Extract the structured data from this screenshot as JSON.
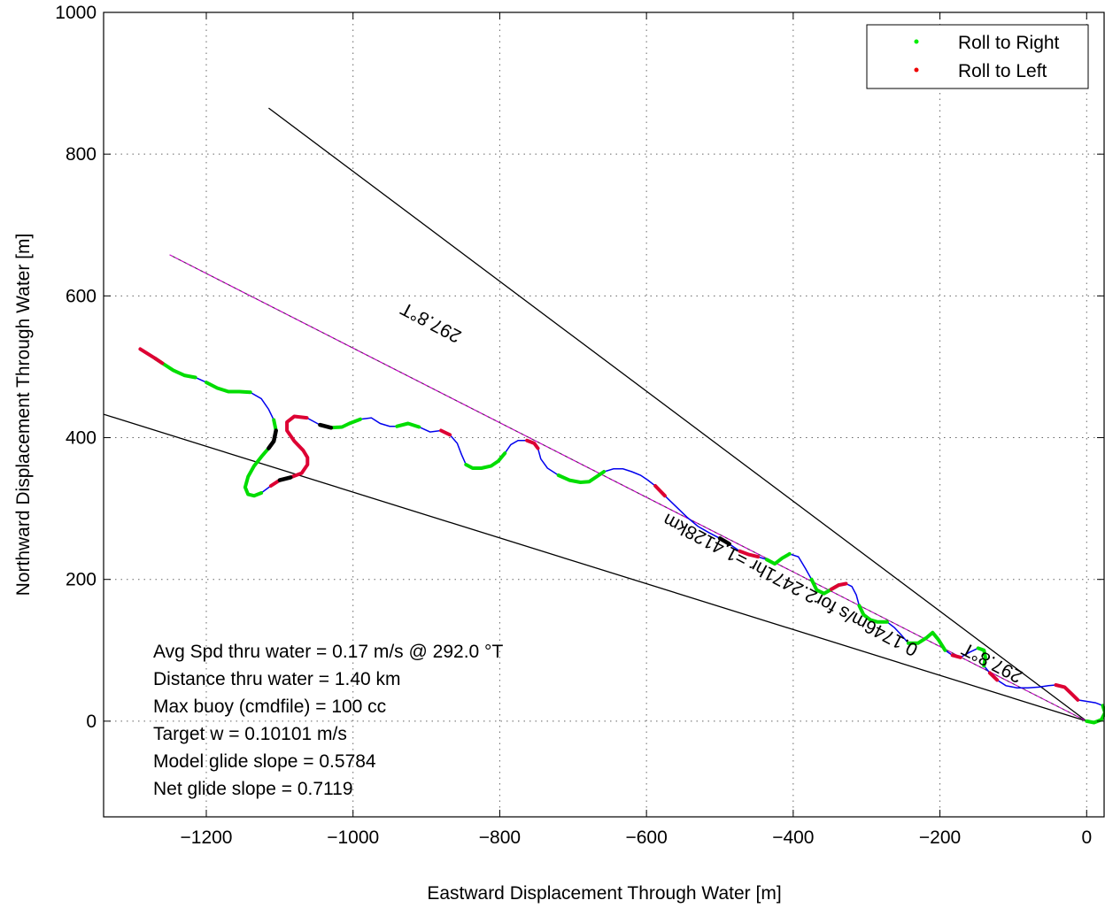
{
  "chart_data": {
    "type": "line",
    "xlabel": "Eastward Displacement Through Water [m]",
    "ylabel": "Northward Displacement Through Water [m]",
    "xlim": [
      -1340,
      25
    ],
    "ylim": [
      -135,
      1000
    ],
    "xticks": [
      -1200,
      -1000,
      -800,
      -600,
      -400,
      -200,
      0
    ],
    "yticks": [
      0,
      200,
      400,
      600,
      800,
      1000
    ],
    "xtick_labels": [
      "−1200",
      "−1000",
      "−800",
      "−600",
      "−400",
      "−200",
      "0"
    ],
    "ytick_labels": [
      "0",
      "200",
      "400",
      "600",
      "800",
      "1000"
    ],
    "grid": true,
    "legend_position": "top-right",
    "legend": [
      {
        "label": "Roll to Right",
        "color": "#00ee00"
      },
      {
        "label": "Roll to Left",
        "color": "#ee0000"
      }
    ],
    "colors": {
      "track": "#0000ee",
      "roll_right": "#00dd00",
      "roll_left": "#dd0033",
      "bearing_line": "#cc00cc",
      "reference_lines": "#000000",
      "pause_marks": "#000000"
    },
    "reference_lines": [
      {
        "from": [
          0,
          0
        ],
        "to": [
          -1115,
          865
        ]
      },
      {
        "from": [
          0,
          0
        ],
        "to": [
          -1340,
          433
        ]
      }
    ],
    "bearing_line": {
      "from": [
        0,
        0
      ],
      "to": [
        -1250,
        658
      ]
    },
    "annotations": [
      {
        "text": "297.8°T",
        "at": [
          -890,
          570
        ],
        "rotation": 207.8
      },
      {
        "text": "297.8°T",
        "at": [
          -125,
          90
        ],
        "rotation": 207.8
      },
      {
        "text": "0.1746m/s for2.2471hr =1.4128km",
        "at": [
          -400,
          200
        ],
        "rotation": 207.8
      }
    ],
    "track": [
      [
        -1290,
        525
      ],
      [
        -1270,
        512
      ],
      [
        -1260,
        505
      ],
      [
        -1245,
        495
      ],
      [
        -1230,
        488
      ],
      [
        -1215,
        485
      ],
      [
        -1200,
        478
      ],
      [
        -1185,
        470
      ],
      [
        -1170,
        465
      ],
      [
        -1155,
        465
      ],
      [
        -1140,
        464
      ],
      [
        -1125,
        455
      ],
      [
        -1115,
        440
      ],
      [
        -1108,
        425
      ],
      [
        -1105,
        410
      ],
      [
        -1108,
        395
      ],
      [
        -1115,
        385
      ],
      [
        -1125,
        373
      ],
      [
        -1135,
        360
      ],
      [
        -1143,
        345
      ],
      [
        -1147,
        330
      ],
      [
        -1143,
        320
      ],
      [
        -1135,
        318
      ],
      [
        -1125,
        322
      ],
      [
        -1112,
        332
      ],
      [
        -1100,
        340
      ],
      [
        -1085,
        344
      ],
      [
        -1070,
        350
      ],
      [
        -1062,
        362
      ],
      [
        -1062,
        372
      ],
      [
        -1068,
        382
      ],
      [
        -1080,
        395
      ],
      [
        -1090,
        410
      ],
      [
        -1090,
        422
      ],
      [
        -1080,
        430
      ],
      [
        -1063,
        428
      ],
      [
        -1045,
        418
      ],
      [
        -1030,
        414
      ],
      [
        -1015,
        415
      ],
      [
        -1005,
        420
      ],
      [
        -990,
        426
      ],
      [
        -975,
        428
      ],
      [
        -963,
        420
      ],
      [
        -950,
        416
      ],
      [
        -940,
        416
      ],
      [
        -925,
        420
      ],
      [
        -910,
        415
      ],
      [
        -895,
        408
      ],
      [
        -880,
        410
      ],
      [
        -868,
        404
      ],
      [
        -858,
        392
      ],
      [
        -852,
        376
      ],
      [
        -846,
        362
      ],
      [
        -837,
        357
      ],
      [
        -825,
        357
      ],
      [
        -812,
        360
      ],
      [
        -802,
        367
      ],
      [
        -793,
        378
      ],
      [
        -785,
        390
      ],
      [
        -775,
        396
      ],
      [
        -763,
        396
      ],
      [
        -753,
        392
      ],
      [
        -748,
        385
      ],
      [
        -744,
        370
      ],
      [
        -735,
        357
      ],
      [
        -720,
        347
      ],
      [
        -705,
        340
      ],
      [
        -690,
        337
      ],
      [
        -678,
        338
      ],
      [
        -668,
        345
      ],
      [
        -658,
        352
      ],
      [
        -645,
        356
      ],
      [
        -632,
        356
      ],
      [
        -620,
        352
      ],
      [
        -608,
        347
      ],
      [
        -598,
        340
      ],
      [
        -588,
        332
      ],
      [
        -575,
        318
      ],
      [
        -560,
        303
      ],
      [
        -545,
        288
      ],
      [
        -530,
        275
      ],
      [
        -515,
        266
      ],
      [
        -500,
        258
      ],
      [
        -487,
        250
      ],
      [
        -473,
        240
      ],
      [
        -460,
        235
      ],
      [
        -448,
        232
      ],
      [
        -436,
        228
      ],
      [
        -425,
        222
      ],
      [
        -415,
        230
      ],
      [
        -405,
        236
      ],
      [
        -393,
        232
      ],
      [
        -383,
        215
      ],
      [
        -375,
        200
      ],
      [
        -368,
        185
      ],
      [
        -358,
        180
      ],
      [
        -348,
        186
      ],
      [
        -338,
        192
      ],
      [
        -328,
        194
      ],
      [
        -320,
        190
      ],
      [
        -314,
        178
      ],
      [
        -310,
        163
      ],
      [
        -304,
        150
      ],
      [
        -295,
        143
      ],
      [
        -285,
        140
      ],
      [
        -272,
        140
      ],
      [
        -262,
        132
      ],
      [
        -253,
        122
      ],
      [
        -243,
        110
      ],
      [
        -230,
        110
      ],
      [
        -218,
        118
      ],
      [
        -210,
        125
      ],
      [
        -202,
        115
      ],
      [
        -193,
        100
      ],
      [
        -183,
        93
      ],
      [
        -172,
        90
      ],
      [
        -160,
        97
      ],
      [
        -148,
        103
      ],
      [
        -140,
        100
      ],
      [
        -138,
        90
      ],
      [
        -140,
        78
      ],
      [
        -132,
        68
      ],
      [
        -122,
        58
      ],
      [
        -110,
        50
      ],
      [
        -95,
        47
      ],
      [
        -80,
        47
      ],
      [
        -65,
        48
      ],
      [
        -52,
        50
      ],
      [
        -42,
        51
      ],
      [
        -30,
        48
      ],
      [
        -20,
        38
      ],
      [
        -12,
        30
      ],
      [
        0,
        28
      ],
      [
        12,
        26
      ],
      [
        22,
        22
      ],
      [
        25,
        12
      ],
      [
        20,
        2
      ],
      [
        10,
        -2
      ],
      [
        0,
        0
      ]
    ],
    "roll_right_segments": [
      [
        1,
        5
      ],
      [
        6,
        10
      ],
      [
        13,
        23
      ],
      [
        36,
        40
      ],
      [
        44,
        46
      ],
      [
        52,
        57
      ],
      [
        65,
        70
      ],
      [
        87,
        90
      ],
      [
        93,
        97
      ],
      [
        101,
        105
      ],
      [
        108,
        113
      ],
      [
        117,
        120
      ],
      [
        134,
        143
      ]
    ],
    "roll_left_segments": [
      [
        0,
        2
      ],
      [
        24,
        35
      ],
      [
        48,
        49
      ],
      [
        60,
        62
      ],
      [
        76,
        77
      ],
      [
        84,
        86
      ],
      [
        96,
        98
      ],
      [
        114,
        115
      ],
      [
        121,
        122
      ],
      [
        128,
        131
      ]
    ],
    "pause_segments": [
      [
        14,
        16
      ],
      [
        25,
        26
      ],
      [
        36,
        37
      ],
      [
        82,
        83
      ]
    ],
    "stats": [
      "Avg Spd thru water =  0.17 m/s @ 292.0   °T",
      "Distance thru water =  1.40 km",
      "Max buoy (cmdfile) = 100 cc",
      "Target w = 0.10101 m/s",
      "Model glide slope = 0.5784",
      "Net glide slope = 0.7119"
    ]
  }
}
